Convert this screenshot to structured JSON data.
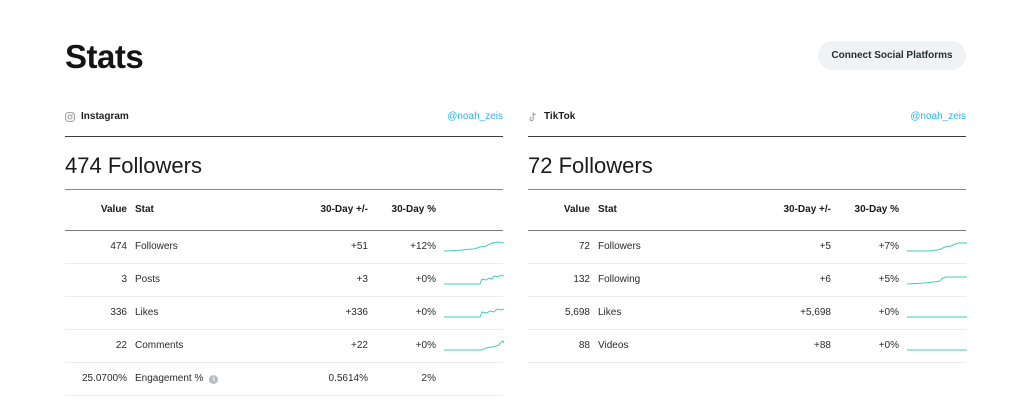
{
  "page": {
    "title": "Stats"
  },
  "header": {
    "connect_label": "Connect Social Platforms"
  },
  "colors": {
    "accent": "#27b6e6",
    "sparkline": "#3fd1b2"
  },
  "columns": {
    "value": "Value",
    "stat": "Stat",
    "delta": "30-Day +/-",
    "pct": "30-Day %"
  },
  "instagram": {
    "platform": "Instagram",
    "icon": "instagram-icon",
    "handle": "@noah_zeis",
    "followers_label": "474 Followers",
    "rows": [
      {
        "value": "474",
        "stat": "Followers",
        "delta": "+51",
        "pct": "+12%"
      },
      {
        "value": "3",
        "stat": "Posts",
        "delta": "+3",
        "pct": "+0%"
      },
      {
        "value": "336",
        "stat": "Likes",
        "delta": "+336",
        "pct": "+0%"
      },
      {
        "value": "22",
        "stat": "Comments",
        "delta": "+22",
        "pct": "+0%"
      },
      {
        "value": "25.0700%",
        "stat": "Engagement %",
        "delta": "0.5614%",
        "pct": "2%"
      }
    ]
  },
  "tiktok": {
    "platform": "TikTok",
    "icon": "tiktok-icon",
    "handle": "@noah_zeis",
    "followers_label": "72 Followers",
    "rows": [
      {
        "value": "72",
        "stat": "Followers",
        "delta": "+5",
        "pct": "+7%"
      },
      {
        "value": "132",
        "stat": "Following",
        "delta": "+6",
        "pct": "+5%"
      },
      {
        "value": "5,698",
        "stat": "Likes",
        "delta": "+5,698",
        "pct": "+0%"
      },
      {
        "value": "88",
        "stat": "Videos",
        "delta": "+88",
        "pct": "+0%"
      }
    ]
  }
}
